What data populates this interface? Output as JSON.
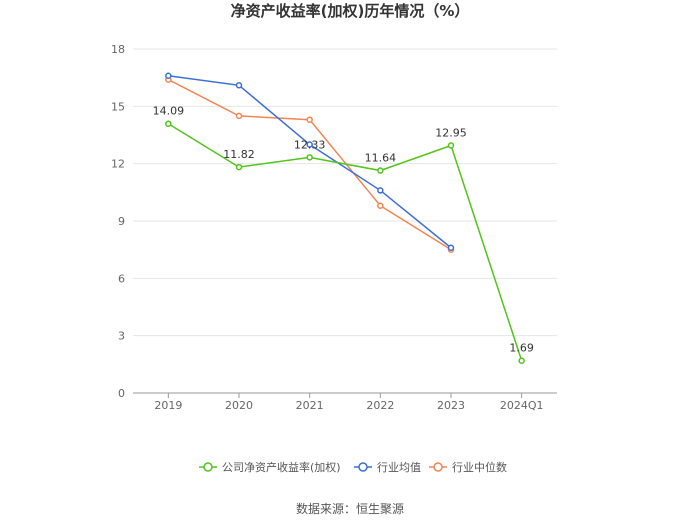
{
  "chart_data": {
    "type": "line",
    "title": "净资产收益率(加权)历年情况（%）",
    "categories": [
      "2019",
      "2020",
      "2021",
      "2022",
      "2023",
      "2024Q1"
    ],
    "ylim": [
      0,
      18
    ],
    "yticks": [
      0,
      3,
      6,
      9,
      12,
      15,
      18
    ],
    "grid": true,
    "legend_position": "bottom",
    "series": [
      {
        "name": "公司净资产收益率(加权)",
        "color": "#52c41a",
        "values": [
          14.09,
          11.82,
          12.33,
          11.64,
          12.95,
          1.69
        ],
        "labels": [
          "14.09",
          "11.82",
          "12.33",
          "11.64",
          "12.95",
          "1.69"
        ]
      },
      {
        "name": "行业均值",
        "color": "#3b6fd8",
        "values": [
          16.6,
          16.1,
          13.0,
          10.6,
          7.6,
          null
        ]
      },
      {
        "name": "行业中位数",
        "color": "#f08656",
        "values": [
          16.4,
          14.5,
          14.3,
          9.8,
          7.5,
          null
        ]
      }
    ],
    "source": "数据来源：恒生聚源"
  }
}
